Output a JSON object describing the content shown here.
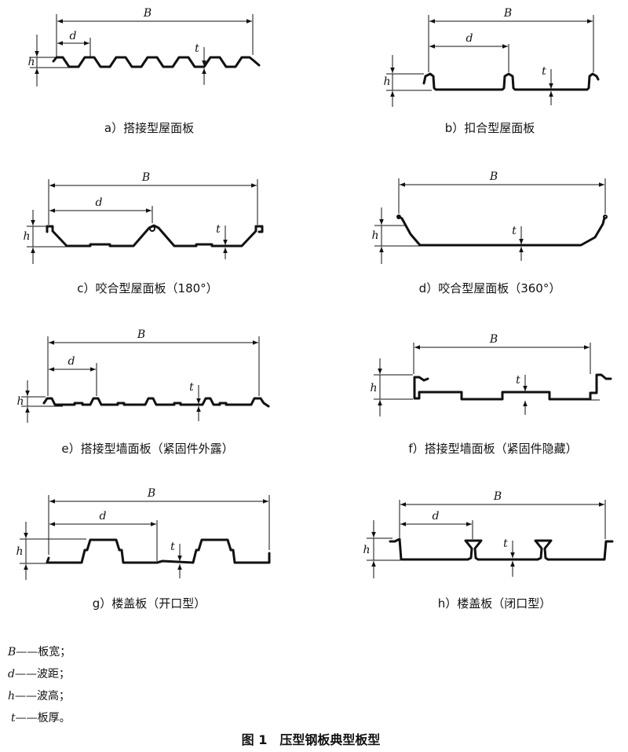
{
  "symbols": {
    "B": "B",
    "d": "d",
    "h": "h",
    "t": "t"
  },
  "captions": [
    "a）搭接型屋面板",
    "b）扣合型屋面板",
    "c）咬合型屋面板（180°）",
    "d）咬合型屋面板（360°）",
    "e）搭接型墙面板（紧固件外露）",
    "f）搭接型墙面板（紧固件隐藏）",
    "g）楼盖板（开口型）",
    "h）楼盖板（闭口型）"
  ],
  "legend": [
    {
      "symbol": "B",
      "text": "——板宽；"
    },
    {
      "symbol": "d",
      "text": "——波距；"
    },
    {
      "symbol": "h",
      "text": "——波高；"
    },
    {
      "symbol": "t",
      "text": "——板厚。"
    }
  ],
  "figure_title": "图 1　压型钢板典型板型"
}
